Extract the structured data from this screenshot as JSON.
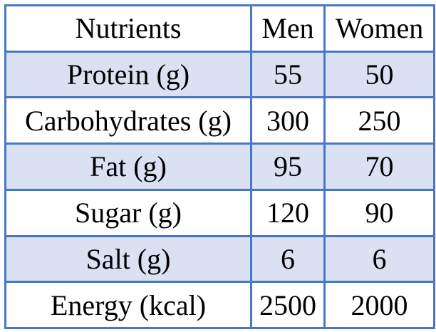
{
  "table": {
    "header": [
      "Nutrients",
      "Men",
      "Women"
    ],
    "rows": [
      [
        "Protein (g)",
        55,
        50
      ],
      [
        "Carbohydrates (g)",
        300,
        250
      ],
      [
        "Fat (g)",
        95,
        70
      ],
      [
        "Sugar (g)",
        120,
        90
      ],
      [
        "Salt (g)",
        6,
        6
      ],
      [
        "Energy (kcal)",
        2500,
        2000
      ]
    ]
  }
}
